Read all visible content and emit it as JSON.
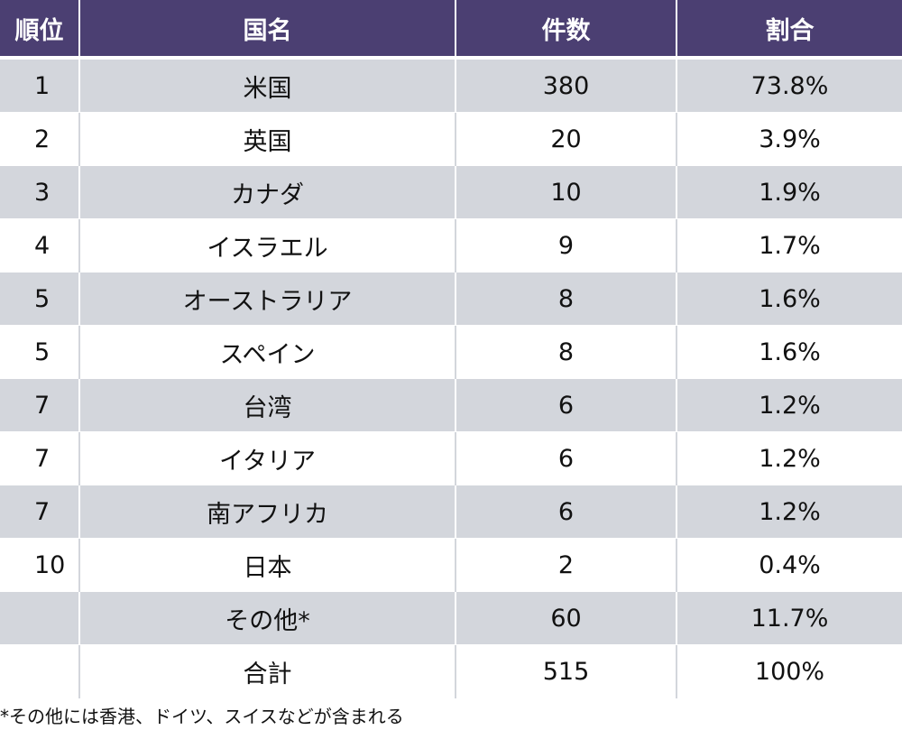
{
  "table": {
    "headers": [
      "順位",
      "国名",
      "件数",
      "割合"
    ],
    "rows": [
      {
        "rank": "1",
        "country": "米国",
        "count": "380",
        "ratio": "73.8%"
      },
      {
        "rank": "2",
        "country": "英国",
        "count": "20",
        "ratio": "3.9%"
      },
      {
        "rank": "3",
        "country": "カナダ",
        "count": "10",
        "ratio": "1.9%"
      },
      {
        "rank": "4",
        "country": "イスラエル",
        "count": "9",
        "ratio": "1.7%"
      },
      {
        "rank": "5",
        "country": "オーストラリア",
        "count": "8",
        "ratio": "1.6%"
      },
      {
        "rank": "5",
        "country": "スペイン",
        "count": "8",
        "ratio": "1.6%"
      },
      {
        "rank": "7",
        "country": "台湾",
        "count": "6",
        "ratio": "1.2%"
      },
      {
        "rank": "7",
        "country": "イタリア",
        "count": "6",
        "ratio": "1.2%"
      },
      {
        "rank": "7",
        "country": "南アフリカ",
        "count": "6",
        "ratio": "1.2%"
      },
      {
        "rank": "10",
        "country": "日本",
        "count": "2",
        "ratio": "0.4%"
      },
      {
        "rank": "",
        "country": "その他*",
        "count": "60",
        "ratio": "11.7%"
      },
      {
        "rank": "",
        "country": "合計",
        "count": "515",
        "ratio": "100%"
      }
    ]
  },
  "footnote": "*その他には香港、ドイツ、スイスなどが含まれる",
  "colors": {
    "header_bg": "#4b3f72",
    "header_text": "#ffffff",
    "stripe_bg": "#d3d6dc",
    "row_bg": "#ffffff"
  }
}
